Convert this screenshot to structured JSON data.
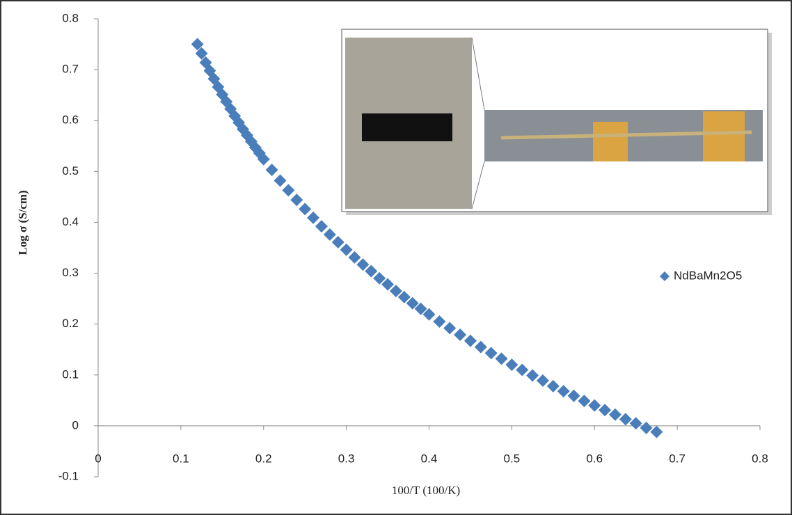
{
  "chart_data": {
    "type": "scatter",
    "x_label": "100/T (100/K)",
    "y_label": "Log σ (S/cm)",
    "xlim": [
      0,
      0.8
    ],
    "xticks": [
      0,
      0.1,
      0.2,
      0.3,
      0.4,
      0.5,
      0.6,
      0.7,
      0.8
    ],
    "ylim": [
      -0.1,
      0.8
    ],
    "yticks": [
      -0.1,
      0,
      0.1,
      0.2,
      0.3,
      0.4,
      0.5,
      0.6,
      0.7,
      0.8
    ],
    "legend": "right",
    "series": [
      {
        "name": "NdBaMn2O5",
        "color": "#4a7ebb",
        "x": [
          0.12,
          0.125,
          0.13,
          0.135,
          0.14,
          0.145,
          0.15,
          0.155,
          0.16,
          0.165,
          0.17,
          0.175,
          0.18,
          0.185,
          0.19,
          0.195,
          0.2,
          0.21,
          0.22,
          0.23,
          0.24,
          0.25,
          0.26,
          0.27,
          0.28,
          0.29,
          0.3,
          0.31,
          0.32,
          0.33,
          0.34,
          0.35,
          0.36,
          0.37,
          0.38,
          0.39,
          0.4,
          0.4125,
          0.425,
          0.4375,
          0.45,
          0.4625,
          0.475,
          0.4875,
          0.5,
          0.5125,
          0.525,
          0.5375,
          0.55,
          0.5625,
          0.575,
          0.5875,
          0.6,
          0.6125,
          0.625,
          0.6375,
          0.65,
          0.6625,
          0.675
        ],
        "values": [
          0.75,
          0.732,
          0.714,
          0.698,
          0.682,
          0.666,
          0.651,
          0.637,
          0.623,
          0.609,
          0.596,
          0.583,
          0.571,
          0.559,
          0.547,
          0.536,
          0.524,
          0.503,
          0.482,
          0.463,
          0.444,
          0.426,
          0.409,
          0.392,
          0.376,
          0.361,
          0.346,
          0.331,
          0.317,
          0.304,
          0.29,
          0.278,
          0.265,
          0.253,
          0.241,
          0.23,
          0.219,
          0.205,
          0.192,
          0.179,
          0.167,
          0.155,
          0.143,
          0.132,
          0.12,
          0.11,
          0.099,
          0.089,
          0.078,
          0.068,
          0.059,
          0.049,
          0.04,
          0.031,
          0.022,
          0.013,
          0.005,
          -0.004,
          -0.012
        ]
      }
    ]
  }
}
